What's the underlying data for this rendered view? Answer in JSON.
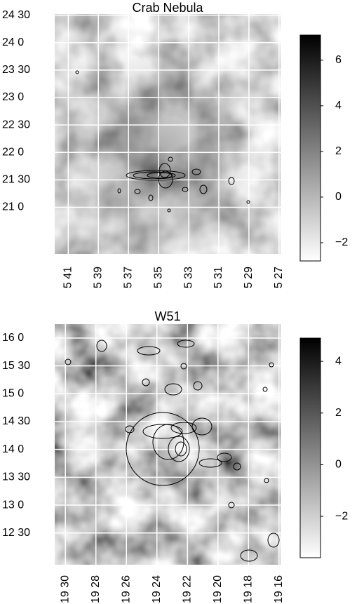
{
  "chart_data": [
    {
      "type": "heatmap",
      "title": "Crab Nebula",
      "xlim": [
        341.9,
        326.9
      ],
      "xticks": [
        {
          "value": 341,
          "label": "5 41"
        },
        {
          "value": 339,
          "label": "5 39"
        },
        {
          "value": 337,
          "label": "5 37"
        },
        {
          "value": 335,
          "label": "5 35"
        },
        {
          "value": 333,
          "label": "5 33"
        },
        {
          "value": 331,
          "label": "5 31"
        },
        {
          "value": 329,
          "label": "5 29"
        },
        {
          "value": 327,
          "label": "5 27"
        }
      ],
      "ylim": [
        20.15,
        24.52
      ],
      "yticks": [
        {
          "value": 24.5,
          "label": "24 30"
        },
        {
          "value": 24,
          "label": "24 0"
        },
        {
          "value": 23.5,
          "label": "23 30"
        },
        {
          "value": 23,
          "label": "23 0"
        },
        {
          "value": 22.5,
          "label": "22 30"
        },
        {
          "value": 22,
          "label": "22 0"
        },
        {
          "value": 21.5,
          "label": "21 30"
        },
        {
          "value": 21,
          "label": "21 0"
        }
      ],
      "zlim": [
        -2.8,
        7.1
      ],
      "zticks": [
        6,
        4,
        2,
        0,
        {
          "value": -2,
          "label": "−2"
        }
      ],
      "colormap": [
        "#ffffff",
        "#000000"
      ],
      "grid": true
    },
    {
      "type": "heatmap",
      "title": "W51",
      "xlim": [
        1170.7,
        1155.9
      ],
      "xticks": [
        {
          "value": 1170,
          "label": "19 30"
        },
        {
          "value": 1168,
          "label": "19 28"
        },
        {
          "value": 1166,
          "label": "19 26"
        },
        {
          "value": 1164,
          "label": "19 24"
        },
        {
          "value": 1162,
          "label": "19 22"
        },
        {
          "value": 1160,
          "label": "19 20"
        },
        {
          "value": 1158,
          "label": "19 18"
        },
        {
          "value": 1156,
          "label": "19 16"
        }
      ],
      "ylim": [
        11.93,
        16.25
      ],
      "yticks": [
        {
          "value": 16,
          "label": "16 0"
        },
        {
          "value": 15.5,
          "label": "15 30"
        },
        {
          "value": 15,
          "label": "15 0"
        },
        {
          "value": 14.5,
          "label": "14 30"
        },
        {
          "value": 14,
          "label": "14 0"
        },
        {
          "value": 13.5,
          "label": "13 30"
        },
        {
          "value": 13,
          "label": "13 0"
        },
        {
          "value": 12.5,
          "label": "12 30"
        }
      ],
      "zlim": [
        -3.6,
        4.9
      ],
      "zticks": [
        4,
        2,
        0,
        {
          "value": -2,
          "label": "−2"
        }
      ],
      "colormap": [
        "#ffffff",
        "#000000"
      ],
      "grid": true
    }
  ]
}
